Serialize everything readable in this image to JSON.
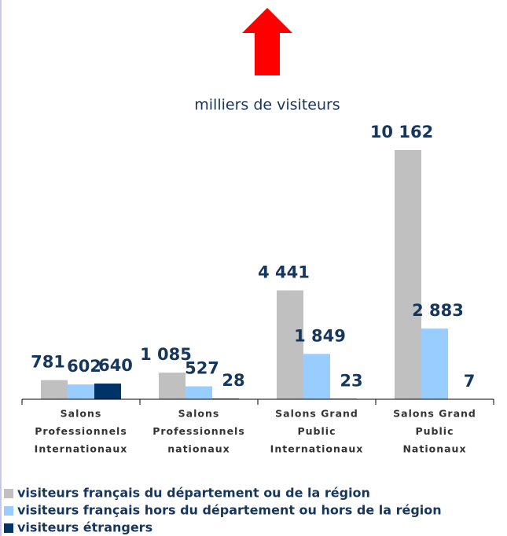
{
  "chart_data": {
    "type": "bar",
    "subtitle": "milliers de visiteurs",
    "categories": [
      [
        "Salons",
        "Professionnels",
        "Internationaux"
      ],
      [
        "Salons",
        "Professionnels",
        "nationaux"
      ],
      [
        "Salons Grand",
        "Public",
        "Internationaux"
      ],
      [
        "Salons Grand",
        "Public",
        "Nationaux"
      ]
    ],
    "series": [
      {
        "name": "visiteurs français du département ou de la région",
        "color": "#c0c0c0",
        "values": [
          781,
          1085,
          4441,
          10162
        ],
        "value_labels": [
          "781",
          "1 085",
          "4 441",
          "10 162"
        ]
      },
      {
        "name": "visiteurs français hors du département ou hors de la région",
        "color": "#99ccff",
        "values": [
          602,
          527,
          1849,
          2883
        ],
        "value_labels": [
          "602",
          "527",
          "1 849",
          "2 883"
        ]
      },
      {
        "name": "visiteurs étrangers",
        "color": "#003366",
        "values": [
          640,
          28,
          23,
          7
        ],
        "value_labels": [
          "640",
          "28",
          "23",
          "7"
        ]
      }
    ]
  }
}
